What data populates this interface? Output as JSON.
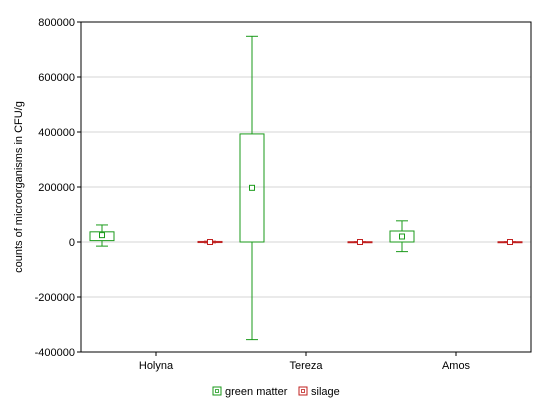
{
  "chart_data": {
    "type": "boxplot",
    "title": "",
    "xlabel": "",
    "ylabel": "counts of microorganisms in CFU/g",
    "ylim": [
      -400000,
      800000
    ],
    "y_ticks": [
      -400000,
      -200000,
      0,
      200000,
      400000,
      600000,
      800000
    ],
    "y_tick_labels": [
      "-400000",
      "-200000",
      "0",
      "200000",
      "400000",
      "600000",
      "800000"
    ],
    "grid": "horizontal",
    "legend_position": "bottom",
    "categories": [
      "Holyna",
      "Tereza",
      "Amos"
    ],
    "series": [
      {
        "name": "green matter",
        "color": "#1a9a1a",
        "boxes": [
          {
            "category": "Holyna",
            "whisker_low": -15000,
            "q1": 5000,
            "center": 25000,
            "q3": 37000,
            "whisker_high": 62000
          },
          {
            "category": "Tereza",
            "whisker_low": -355000,
            "q1": 0,
            "center": 197000,
            "q3": 393000,
            "whisker_high": 748000
          },
          {
            "category": "Amos",
            "whisker_low": -35000,
            "q1": 0,
            "center": 20000,
            "q3": 40000,
            "whisker_high": 77000
          }
        ]
      },
      {
        "name": "silage",
        "color": "#c0201f",
        "boxes": [
          {
            "category": "Holyna",
            "whisker_low": -3000,
            "q1": -2000,
            "center": 0,
            "q3": 2000,
            "whisker_high": 3000
          },
          {
            "category": "Tereza",
            "whisker_low": -1000,
            "q1": -1000,
            "center": 0,
            "q3": 1000,
            "whisker_high": 1000
          },
          {
            "category": "Amos",
            "whisker_low": -1000,
            "q1": -1000,
            "center": 0,
            "q3": 1000,
            "whisker_high": 1000
          }
        ]
      }
    ]
  }
}
